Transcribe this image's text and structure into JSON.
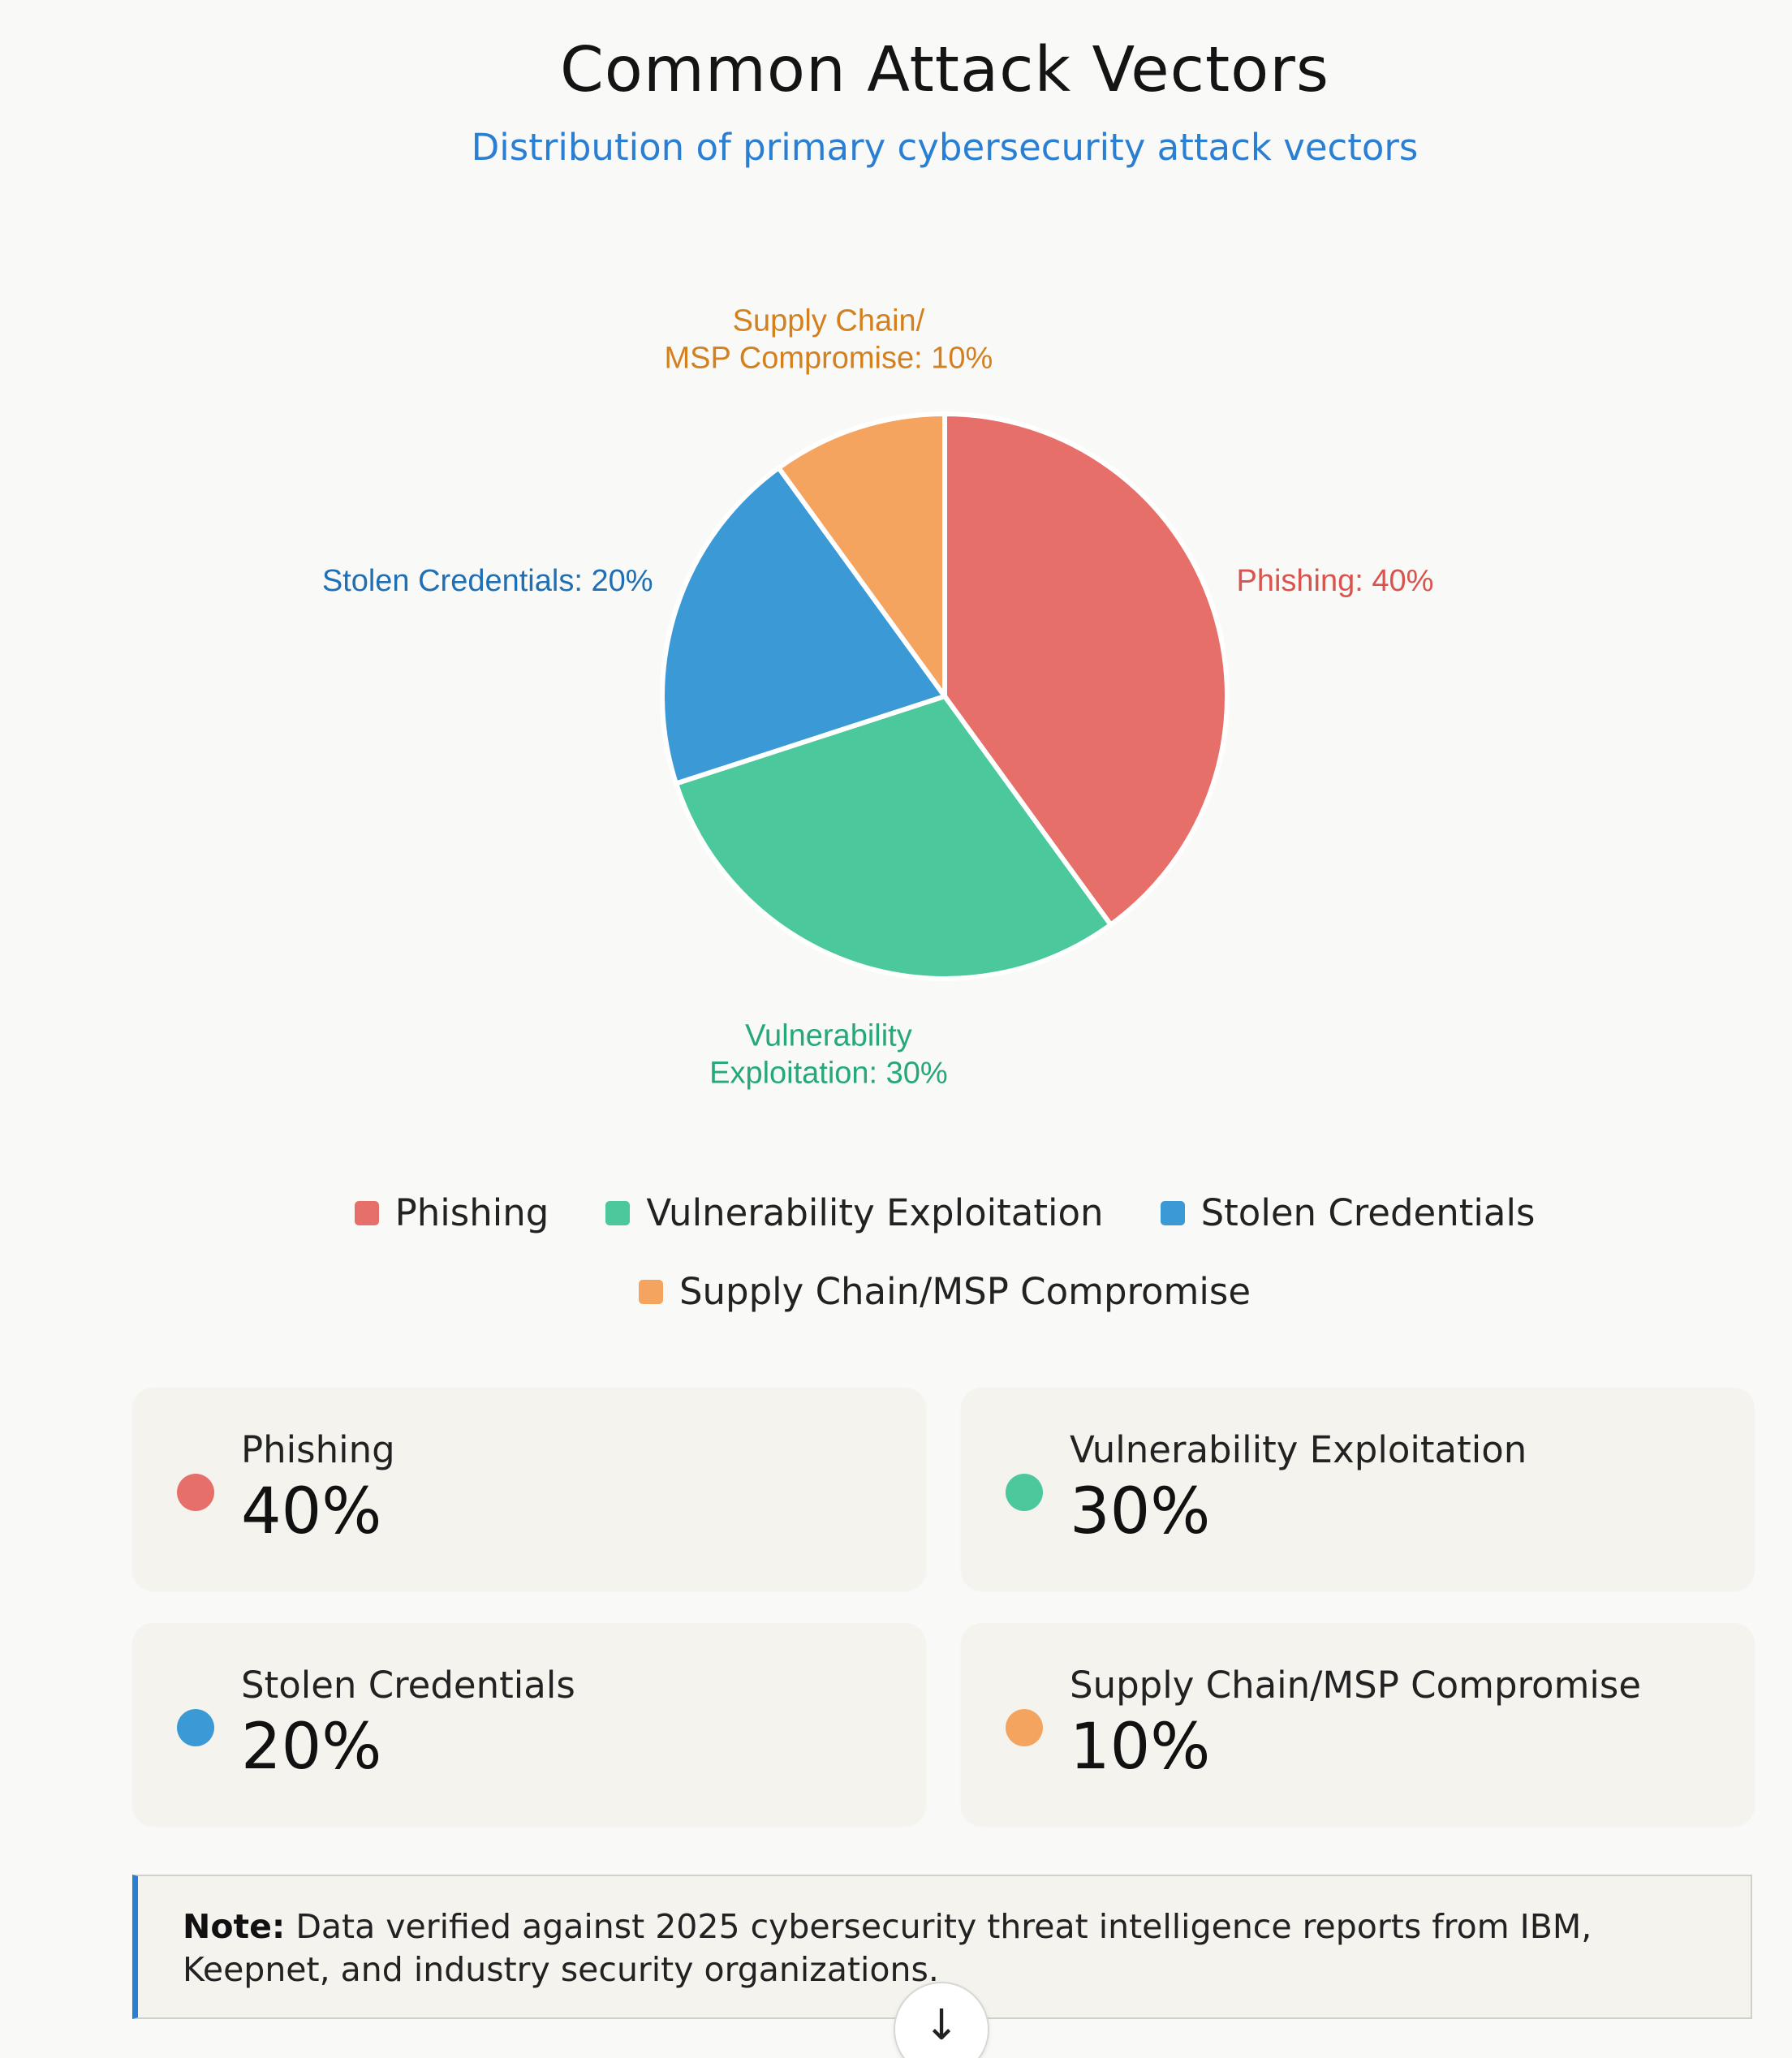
{
  "header": {
    "title": "Common Attack Vectors",
    "subtitle": "Distribution of primary cybersecurity attack vectors"
  },
  "chart_data": {
    "type": "pie",
    "title": "Common Attack Vectors",
    "subtitle": "Distribution of primary cybersecurity attack vectors",
    "categories": [
      "Phishing",
      "Vulnerability Exploitation",
      "Stolen Credentials",
      "Supply Chain/MSP Compromise"
    ],
    "values": [
      40,
      30,
      20,
      10
    ],
    "colors": [
      "#e76f69",
      "#4cc89d",
      "#3b9ad6",
      "#f5a460"
    ],
    "label_colors": [
      "#d9534f",
      "#26a87a",
      "#1f6fb5",
      "#d4801f"
    ],
    "slice_labels": [
      [
        "Phishing: 40%"
      ],
      [
        "Vulnerability",
        "Exploitation: 30%"
      ],
      [
        "Stolen Credentials: 20%"
      ],
      [
        "Supply Chain/",
        "MSP Compromise: 10%"
      ]
    ],
    "legend_position": "bottom"
  },
  "legend": {
    "items": [
      {
        "label": "Phishing",
        "color": "#e76f69"
      },
      {
        "label": "Vulnerability Exploitation",
        "color": "#4cc89d"
      },
      {
        "label": "Stolen Credentials",
        "color": "#3b9ad6"
      },
      {
        "label": "Supply Chain/MSP Compromise",
        "color": "#f5a460"
      }
    ]
  },
  "cards": [
    {
      "label": "Phishing",
      "value": "40%",
      "color": "#e76f69"
    },
    {
      "label": "Vulnerability Exploitation",
      "value": "30%",
      "color": "#4cc89d"
    },
    {
      "label": "Stolen Credentials",
      "value": "20%",
      "color": "#3b9ad6"
    },
    {
      "label": "Supply Chain/MSP Compromise",
      "value": "10%",
      "color": "#f5a460"
    }
  ],
  "note": {
    "prefix": "Note:",
    "text": " Data verified against 2025 cybersecurity threat intelligence reports from IBM, Keepnet, and industry security organizations."
  },
  "scroll_button": {
    "icon": "arrow-down-icon",
    "glyph": "↓"
  }
}
